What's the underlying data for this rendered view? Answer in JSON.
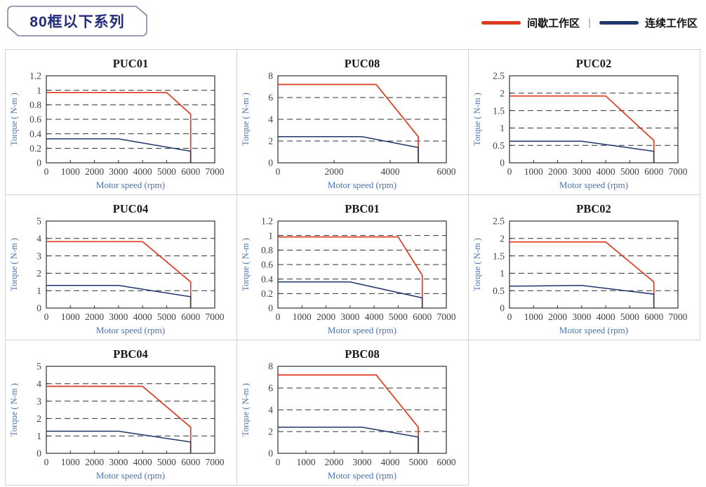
{
  "header": {
    "title": "80框以下系列",
    "legend_separator": "|",
    "legend": [
      {
        "name": "intermittent-zone",
        "label": "间歇工作区",
        "color": "#DE3A1E"
      },
      {
        "name": "continuous-zone",
        "label": "连续工作区",
        "color": "#1F3768"
      }
    ]
  },
  "colors": {
    "intermittent": "#DE3A1E",
    "continuous": "#1F3768",
    "axis_label_blue": "#4A72B0",
    "tick_label": "#403E48",
    "grid_line": "#303030",
    "cell_border": "#d2d2d2",
    "title_text": "#232C7E"
  },
  "chart_data": [
    {
      "type": "line",
      "title": "PUC01",
      "xlabel": "Motor speed (rpm)",
      "ylabel": "Torque ( N-m )",
      "xlim": [
        0,
        7000
      ],
      "ylim": [
        0,
        1.2
      ],
      "xticks": [
        0,
        1000,
        2000,
        3000,
        4000,
        5000,
        6000,
        7000
      ],
      "yticks": [
        0,
        0.2,
        0.4,
        0.6,
        0.8,
        1,
        1.2
      ],
      "grid": "dashed-horizontal",
      "legend_position": "none",
      "series": [
        {
          "name": "间歇工作区",
          "color": "#DE3A1E",
          "points": [
            [
              0,
              0.97
            ],
            [
              5000,
              0.97
            ],
            [
              6000,
              0.67
            ],
            [
              6000,
              0
            ]
          ]
        },
        {
          "name": "连续工作区",
          "color": "#1F3768",
          "points": [
            [
              0,
              0.33
            ],
            [
              3000,
              0.33
            ],
            [
              6000,
              0.16
            ],
            [
              6000,
              0
            ]
          ]
        }
      ]
    },
    {
      "type": "line",
      "title": "PUC08",
      "xlabel": "Motor speed (rpm)",
      "ylabel": "Torque ( N-m )",
      "xlim": [
        0,
        6000
      ],
      "ylim": [
        0,
        8
      ],
      "xticks": [
        0,
        2000,
        4000,
        6000
      ],
      "yticks": [
        0,
        2,
        4,
        6,
        8
      ],
      "grid": "dashed-horizontal",
      "legend_position": "none",
      "series": [
        {
          "name": "间歇工作区",
          "color": "#DE3A1E",
          "points": [
            [
              0,
              7.2
            ],
            [
              3500,
              7.2
            ],
            [
              5000,
              2.4
            ],
            [
              5000,
              0
            ]
          ]
        },
        {
          "name": "连续工作区",
          "color": "#1F3768",
          "points": [
            [
              0,
              2.4
            ],
            [
              3000,
              2.4
            ],
            [
              5000,
              1.4
            ],
            [
              5000,
              0
            ]
          ]
        }
      ]
    },
    {
      "type": "line",
      "title": "PUC02",
      "xlabel": "Motor speed (rpm)",
      "ylabel": "Torque ( N-m )",
      "xlim": [
        0,
        7000
      ],
      "ylim": [
        0,
        2.5
      ],
      "xticks": [
        0,
        1000,
        2000,
        3000,
        4000,
        5000,
        6000,
        7000
      ],
      "yticks": [
        0,
        0.5,
        1,
        1.5,
        2,
        2.5
      ],
      "grid": "dashed-horizontal",
      "legend_position": "none",
      "series": [
        {
          "name": "间歇工作区",
          "color": "#DE3A1E",
          "points": [
            [
              0,
              1.92
            ],
            [
              4000,
              1.92
            ],
            [
              6000,
              0.64
            ],
            [
              6000,
              0
            ]
          ]
        },
        {
          "name": "连续工作区",
          "color": "#1F3768",
          "points": [
            [
              0,
              0.62
            ],
            [
              3000,
              0.62
            ],
            [
              6000,
              0.33
            ],
            [
              6000,
              0
            ]
          ]
        }
      ]
    },
    {
      "type": "line",
      "title": "PUC04",
      "xlabel": "Motor speed (rpm)",
      "ylabel": "Torque ( N-m )",
      "xlim": [
        0,
        7000
      ],
      "ylim": [
        0,
        5
      ],
      "xticks": [
        0,
        1000,
        2000,
        3000,
        4000,
        5000,
        6000,
        7000
      ],
      "yticks": [
        0,
        1,
        2,
        3,
        4,
        5
      ],
      "grid": "dashed-horizontal",
      "legend_position": "none",
      "series": [
        {
          "name": "间歇工作区",
          "color": "#DE3A1E",
          "points": [
            [
              0,
              3.82
            ],
            [
              4000,
              3.82
            ],
            [
              6000,
              1.5
            ],
            [
              6000,
              0
            ]
          ]
        },
        {
          "name": "连续工作区",
          "color": "#1F3768",
          "points": [
            [
              0,
              1.3
            ],
            [
              3000,
              1.3
            ],
            [
              6000,
              0.65
            ],
            [
              6000,
              0
            ]
          ]
        }
      ]
    },
    {
      "type": "line",
      "title": "PBC01",
      "xlabel": "Motor speed (rpm)",
      "ylabel": "Torque ( N-m )",
      "xlim": [
        0,
        7000
      ],
      "ylim": [
        0,
        1.2
      ],
      "xticks": [
        0,
        1000,
        2000,
        3000,
        4000,
        5000,
        6000,
        7000
      ],
      "yticks": [
        0,
        0.2,
        0.4,
        0.6,
        0.8,
        1,
        1.2
      ],
      "grid": "dashed-horizontal",
      "legend_position": "none",
      "series": [
        {
          "name": "间歇工作区",
          "color": "#DE3A1E",
          "points": [
            [
              0,
              0.98
            ],
            [
              5000,
              0.98
            ],
            [
              6000,
              0.45
            ],
            [
              6000,
              0
            ]
          ]
        },
        {
          "name": "连续工作区",
          "color": "#1F3768",
          "points": [
            [
              0,
              0.36
            ],
            [
              3000,
              0.36
            ],
            [
              6000,
              0.14
            ],
            [
              6000,
              0
            ]
          ]
        }
      ]
    },
    {
      "type": "line",
      "title": "PBC02",
      "xlabel": "Motor speed (rpm)",
      "ylabel": "Torque ( N-m )",
      "xlim": [
        0,
        7000
      ],
      "ylim": [
        0,
        2.5
      ],
      "xticks": [
        0,
        1000,
        2000,
        3000,
        4000,
        5000,
        6000,
        7000
      ],
      "yticks": [
        0,
        0.5,
        1,
        1.5,
        2,
        2.5
      ],
      "grid": "dashed-horizontal",
      "legend_position": "none",
      "series": [
        {
          "name": "间歇工作区",
          "color": "#DE3A1E",
          "points": [
            [
              0,
              1.9
            ],
            [
              4000,
              1.9
            ],
            [
              6000,
              0.75
            ],
            [
              6000,
              0
            ]
          ]
        },
        {
          "name": "连续工作区",
          "color": "#1F3768",
          "points": [
            [
              0,
              0.63
            ],
            [
              3000,
              0.65
            ],
            [
              6000,
              0.4
            ],
            [
              6000,
              0
            ]
          ]
        }
      ]
    },
    {
      "type": "line",
      "title": "PBC04",
      "xlabel": "Motor speed (rpm)",
      "ylabel": "Torque ( N-m )",
      "xlim": [
        0,
        7000
      ],
      "ylim": [
        0,
        5
      ],
      "xticks": [
        0,
        1000,
        2000,
        3000,
        4000,
        5000,
        6000,
        7000
      ],
      "yticks": [
        0,
        1,
        2,
        3,
        4,
        5
      ],
      "grid": "dashed-horizontal",
      "legend_position": "none",
      "series": [
        {
          "name": "间歇工作区",
          "color": "#DE3A1E",
          "points": [
            [
              0,
              3.85
            ],
            [
              4000,
              3.85
            ],
            [
              6000,
              1.5
            ],
            [
              6000,
              0
            ]
          ]
        },
        {
          "name": "连续工作区",
          "color": "#1F3768",
          "points": [
            [
              0,
              1.27
            ],
            [
              3000,
              1.27
            ],
            [
              6000,
              0.65
            ],
            [
              6000,
              0
            ]
          ]
        }
      ]
    },
    {
      "type": "line",
      "title": "PBC08",
      "xlabel": "Motor speed (rpm)",
      "ylabel": "Torque ( N-m )",
      "xlim": [
        0,
        6000
      ],
      "ylim": [
        0,
        8
      ],
      "xticks": [
        0,
        1000,
        2000,
        3000,
        4000,
        5000,
        6000
      ],
      "yticks": [
        0,
        2,
        4,
        6,
        8
      ],
      "grid": "dashed-horizontal",
      "legend_position": "none",
      "series": [
        {
          "name": "间歇工作区",
          "color": "#DE3A1E",
          "points": [
            [
              0,
              7.2
            ],
            [
              3500,
              7.2
            ],
            [
              5000,
              2.4
            ],
            [
              5000,
              0
            ]
          ]
        },
        {
          "name": "连续工作区",
          "color": "#1F3768",
          "points": [
            [
              0,
              2.4
            ],
            [
              3000,
              2.4
            ],
            [
              5000,
              1.5
            ],
            [
              5000,
              0
            ]
          ]
        }
      ]
    }
  ]
}
